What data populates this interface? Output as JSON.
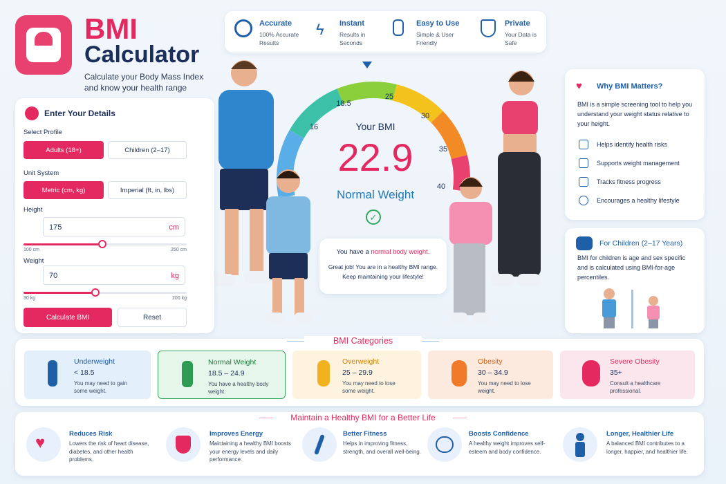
{
  "header": {
    "title_main": "BMI",
    "title_sub": "Calculator",
    "subtitle": "Calculate your Body Mass Index and know your health range"
  },
  "features": [
    {
      "title": "Accurate",
      "desc": "100% Accurate Results"
    },
    {
      "title": "Instant",
      "desc": "Results in Seconds"
    },
    {
      "title": "Easy to Use",
      "desc": "Simple & User Friendly"
    },
    {
      "title": "Private",
      "desc": "Your Data is Safe"
    }
  ],
  "form": {
    "heading": "Enter Your Details",
    "profile_label": "Select Profile",
    "profiles": [
      "Adults (18+)",
      "Children (2–17)"
    ],
    "unit_label": "Unit System",
    "units": [
      "Metric (cm, kg)",
      "Imperial (ft, in, lbs)"
    ],
    "height": {
      "label": "Height",
      "value": "175",
      "unit": "cm",
      "min": "100 cm",
      "max": "250 cm"
    },
    "weight": {
      "label": "Weight",
      "value": "70",
      "unit": "kg",
      "min": "30 kg",
      "max": "200 kg"
    },
    "buttons": [
      "Calculate BMI",
      "Reset"
    ]
  },
  "gauge": {
    "ticks": [
      "16",
      "18.5",
      "25",
      "30",
      "35",
      "40"
    ],
    "label": "Your BMI",
    "value": "22.9",
    "status": "Normal Weight",
    "message_lead": "You have a",
    "message_highlight": "normal body weight.",
    "message_detail": "Great job! You are in a healthy BMI range. Keep maintaining your lifestyle!"
  },
  "why": {
    "title": "Why BMI Matters?",
    "text": "BMI is a simple screening tool to help you understand your weight status relative to your height.",
    "items": [
      "Helps identify health risks",
      "Supports weight management",
      "Tracks fitness progress",
      "Encourages a healthy lifestyle"
    ]
  },
  "children": {
    "title": "For Children (2–17 Years)",
    "text": "BMI for children is age and sex specific and is calculated using BMI-for-age percentiles."
  },
  "categories": {
    "title": "BMI Categories",
    "items": [
      {
        "name": "Underweight",
        "range": "< 18.5",
        "desc": "You may need to gain some weight."
      },
      {
        "name": "Normal Weight",
        "range": "18.5 – 24.9",
        "desc": "You have a healthy body weight."
      },
      {
        "name": "Overweight",
        "range": "25 – 29.9",
        "desc": "You may need to lose some weight."
      },
      {
        "name": "Obesity",
        "range": "30 – 34.9",
        "desc": "You may need to lose weight."
      },
      {
        "name": "Severe Obesity",
        "range": "35+",
        "desc": "Consult a healthcare professional."
      }
    ]
  },
  "tips": {
    "title": "Maintain a Healthy BMI for a Better Life",
    "items": [
      {
        "title": "Reduces Risk",
        "text": "Lowers the risk of heart disease, diabetes, and other health problems."
      },
      {
        "title": "Improves Energy",
        "text": "Maintaining a healthy BMI boosts your energy levels and daily performance."
      },
      {
        "title": "Better Fitness",
        "text": "Helps in improving fitness, strength, and overall well-being."
      },
      {
        "title": "Boosts Confidence",
        "text": "A healthy weight improves self-esteem and body confidence."
      },
      {
        "title": "Longer, Healthier Life",
        "text": "A balanced BMI contributes to a longer, happier, and healthier life."
      }
    ]
  }
}
